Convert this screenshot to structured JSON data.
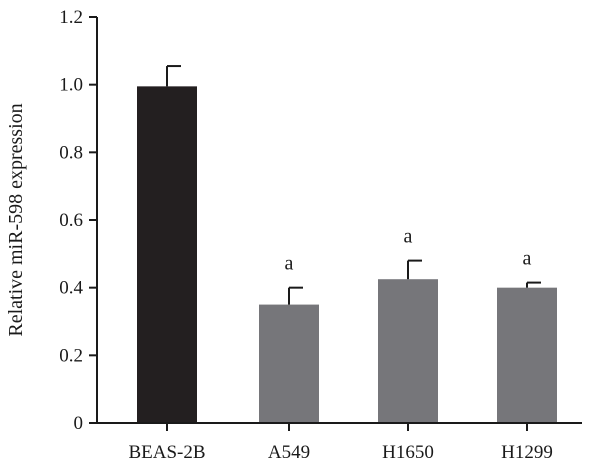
{
  "chart_data": {
    "type": "bar",
    "categories": [
      "BEAS-2B",
      "A549",
      "H1650",
      "H1299"
    ],
    "values": [
      0.995,
      0.35,
      0.425,
      0.4
    ],
    "errors": [
      0.06,
      0.05,
      0.055,
      0.015
    ],
    "bar_colors": [
      "#231f20",
      "#76767a",
      "#76767a",
      "#76767a"
    ],
    "annotations": [
      "",
      "a",
      "a",
      "a"
    ],
    "title": "",
    "xlabel": "",
    "ylabel": "Relative miR-598 expression",
    "ylim": [
      0,
      1.2
    ],
    "yticks": [
      0,
      0.2,
      0.4,
      0.6,
      0.8,
      1.0,
      1.2
    ],
    "ytick_labels": [
      "0",
      "0.2",
      "0.4",
      "0.6",
      "0.8",
      "1.0",
      "1.2"
    ],
    "grid": false,
    "legend": "none"
  }
}
